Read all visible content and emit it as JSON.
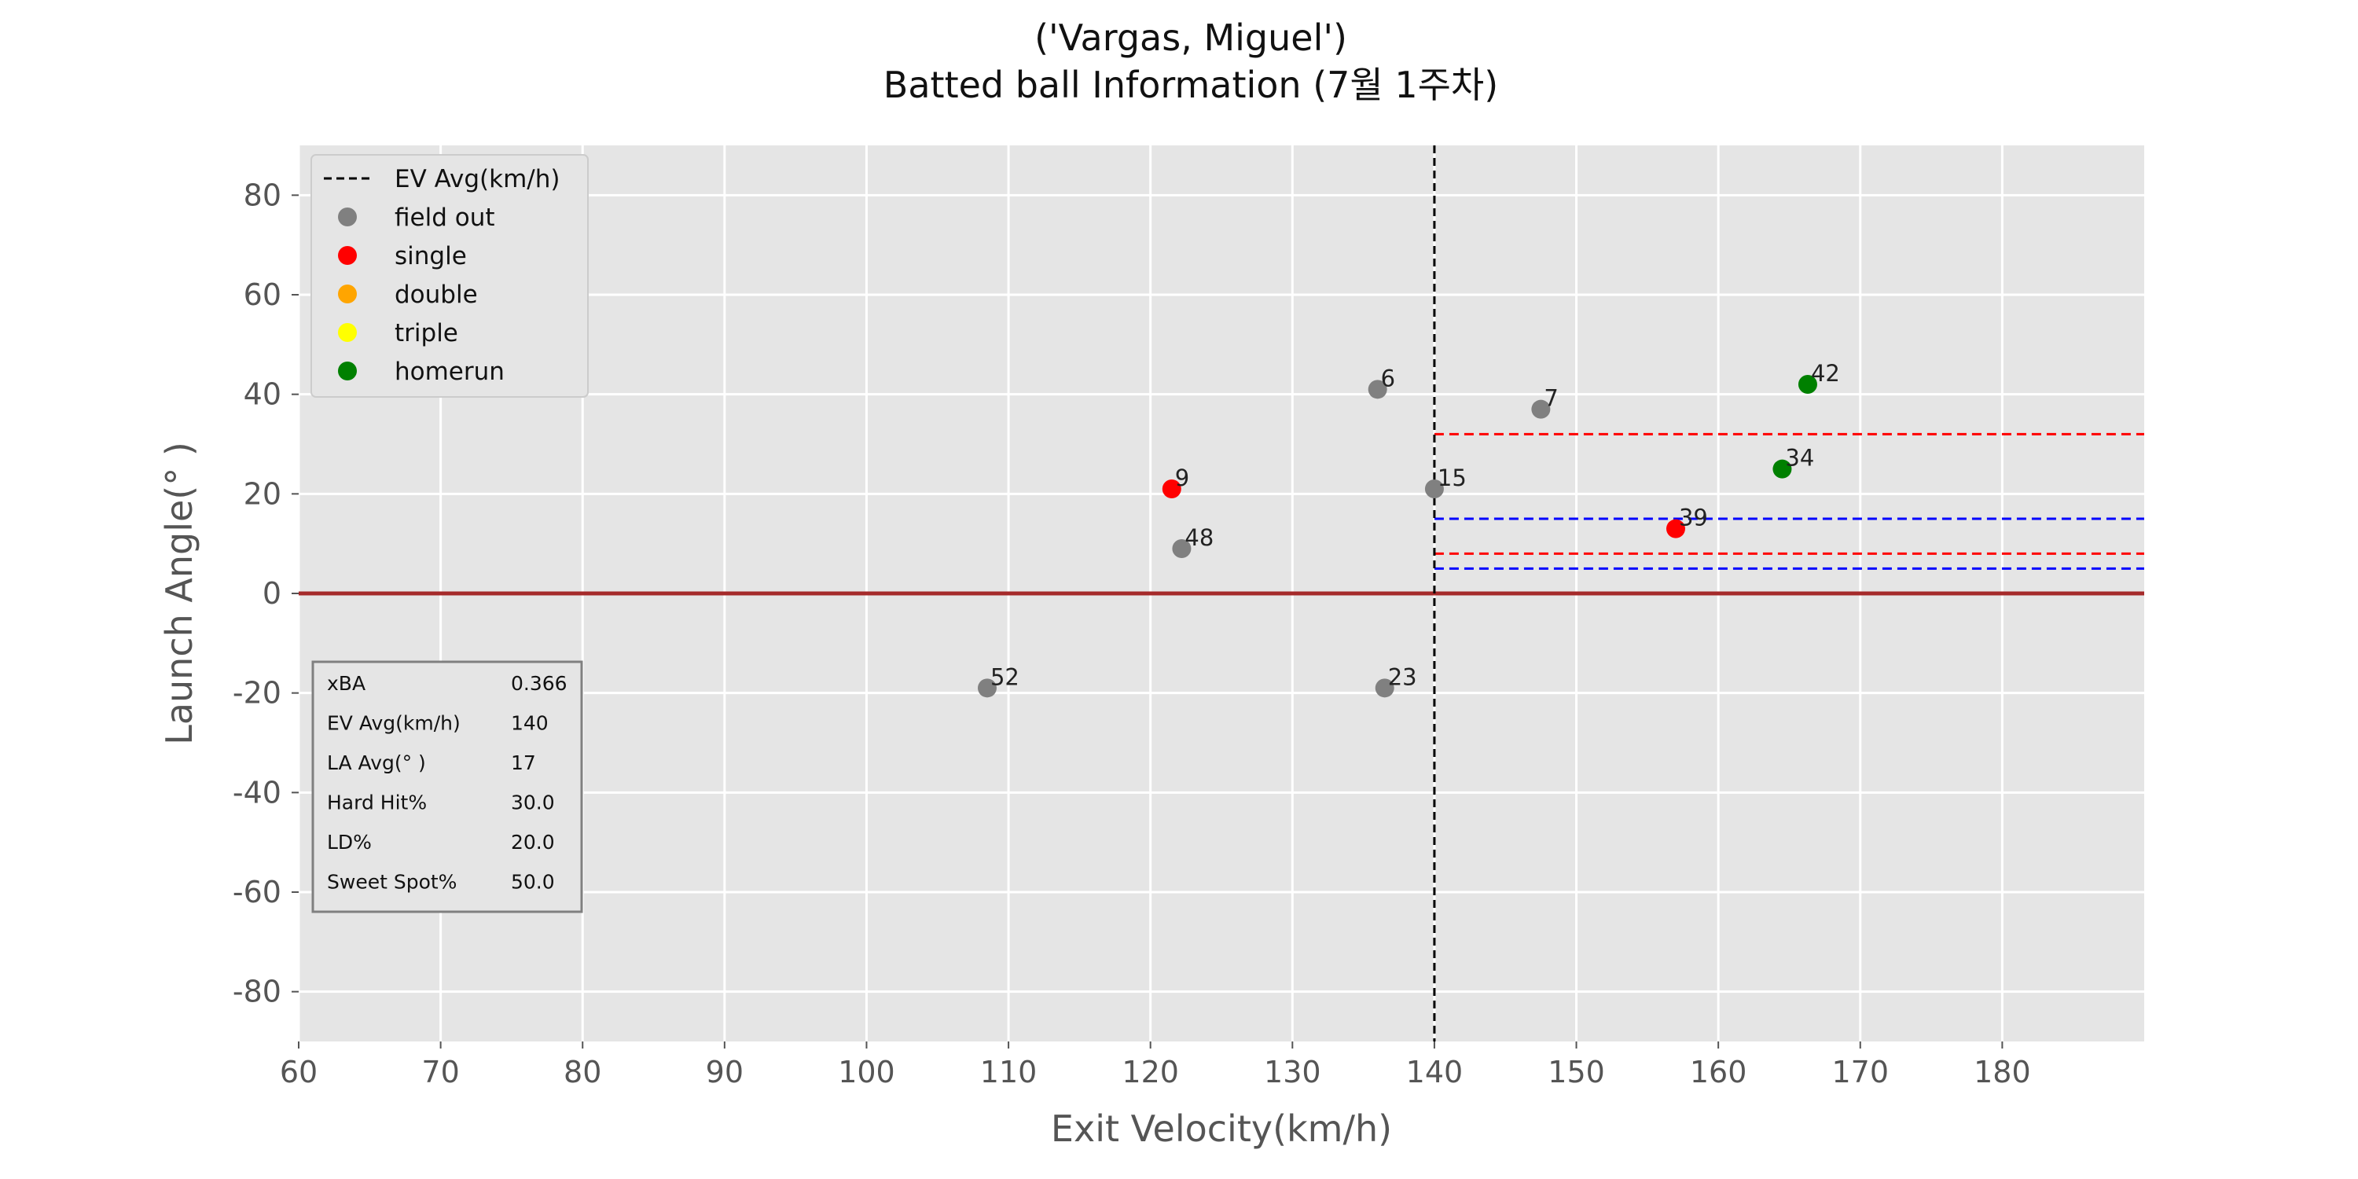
{
  "chart_data": {
    "type": "scatter",
    "title": "('Vargas, Miguel')",
    "subtitle": "Batted ball Information (7월 1주차)",
    "xlabel": "Exit Velocity(km/h)",
    "ylabel": "Launch Angle(°  )",
    "xlim": [
      60,
      190
    ],
    "ylim": [
      -90,
      90
    ],
    "xticks": [
      60,
      70,
      80,
      90,
      100,
      110,
      120,
      130,
      140,
      150,
      160,
      170,
      180
    ],
    "yticks": [
      80,
      60,
      40,
      20,
      0,
      -20,
      -40,
      -60,
      -80
    ],
    "grid": true,
    "legend_placement": "top-left",
    "legend": [
      {
        "label": "EV Avg(km/h)",
        "kind": "line",
        "color": "#000000"
      },
      {
        "label": "field out",
        "kind": "marker",
        "color": "#808080"
      },
      {
        "label": "single",
        "kind": "marker",
        "color": "#ff0000"
      },
      {
        "label": "double",
        "kind": "marker",
        "color": "#ffa500"
      },
      {
        "label": "triple",
        "kind": "marker",
        "color": "#ffff00"
      },
      {
        "label": "homerun",
        "kind": "marker",
        "color": "#008000"
      }
    ],
    "points": [
      {
        "id": "6",
        "x": 136.0,
        "y": 41,
        "result": "field out",
        "color": "#808080"
      },
      {
        "id": "7",
        "x": 147.5,
        "y": 37,
        "result": "field out",
        "color": "#808080"
      },
      {
        "id": "42",
        "x": 166.3,
        "y": 42,
        "result": "homerun",
        "color": "#008000"
      },
      {
        "id": "34",
        "x": 164.5,
        "y": 25,
        "result": "homerun",
        "color": "#008000"
      },
      {
        "id": "9",
        "x": 121.5,
        "y": 21,
        "result": "single",
        "color": "#ff0000"
      },
      {
        "id": "15",
        "x": 140.0,
        "y": 21,
        "result": "field out",
        "color": "#808080"
      },
      {
        "id": "39",
        "x": 157.0,
        "y": 13,
        "result": "single",
        "color": "#ff0000"
      },
      {
        "id": "48",
        "x": 122.2,
        "y": 9,
        "result": "field out",
        "color": "#808080"
      },
      {
        "id": "52",
        "x": 108.5,
        "y": -19,
        "result": "field out",
        "color": "#808080"
      },
      {
        "id": "23",
        "x": 136.5,
        "y": -19,
        "result": "field out",
        "color": "#808080"
      }
    ],
    "reference_lines": {
      "ev_avg": {
        "x": 140,
        "color": "#000000"
      },
      "zero_line": {
        "y": 0,
        "color": "#a52a2a"
      },
      "red_band": {
        "x_from": 140,
        "y": [
          32,
          8
        ],
        "color": "#ff0000"
      },
      "blue_band": {
        "x_from": 140,
        "y": [
          15,
          5
        ],
        "color": "#0000ff"
      }
    },
    "stats_table": [
      {
        "label": "xBA",
        "value": "0.366"
      },
      {
        "label": "EV Avg(km/h)",
        "value": "140"
      },
      {
        "label": "LA Avg(°  )",
        "value": "17"
      },
      {
        "label": "Hard Hit%",
        "value": "30.0"
      },
      {
        "label": "LD%",
        "value": "20.0"
      },
      {
        "label": "Sweet Spot%",
        "value": "50.0"
      }
    ]
  }
}
